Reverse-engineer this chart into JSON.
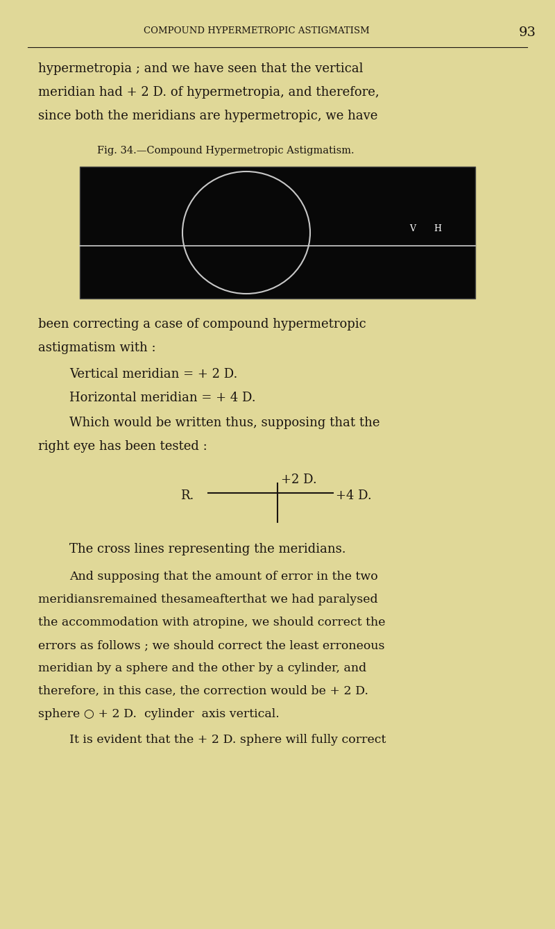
{
  "background_color": "#e0d898",
  "header_text": "COMPOUND HYPERMETROPIC ASTIGMATISM",
  "page_number": "93",
  "para1_lines": [
    "hypermetropia ; and we have seen that the vertical",
    "meridian had + 2 D. of hypermetropia, and therefore,",
    "since both the meridians are hypermetropic, we have"
  ],
  "fig_caption": "Fig. 34.—Compound Hypermetropic Astigmatism.",
  "fig_bg": "#080808",
  "para2_lines": [
    "been correcting a case of compound hypermetropic",
    "astigmatism with :"
  ],
  "line_vertical": "Vertical meridian = + 2 D.",
  "line_horizontal": "Horizontal meridian = + 4 D.",
  "line_which1": "Which would be written thus, supposing that the",
  "line_which2": "right eye has been tested :",
  "cross_top": "+2 D.",
  "cross_right": "+4 D.",
  "para3": "The cross lines representing the meridians.",
  "para4_lines": [
    "And supposing that the amount of error in the two",
    "meridiansremained thesameafterthat we had paralysed",
    "the accommodation with atropine, we should correct the",
    "errors as follows ; we should correct the least erroneous",
    "meridian by a sphere and the other by a cylinder, and",
    "therefore, in this case, the correction would be + 2 D.",
    "sphere ○ + 2 D.  cylinder  axis vertical."
  ],
  "para5": "It is evident that the + 2 D. sphere will fully correct",
  "text_color": "#1a1410",
  "fig_line_color": "#cccccc",
  "header_color": "#1a1410"
}
